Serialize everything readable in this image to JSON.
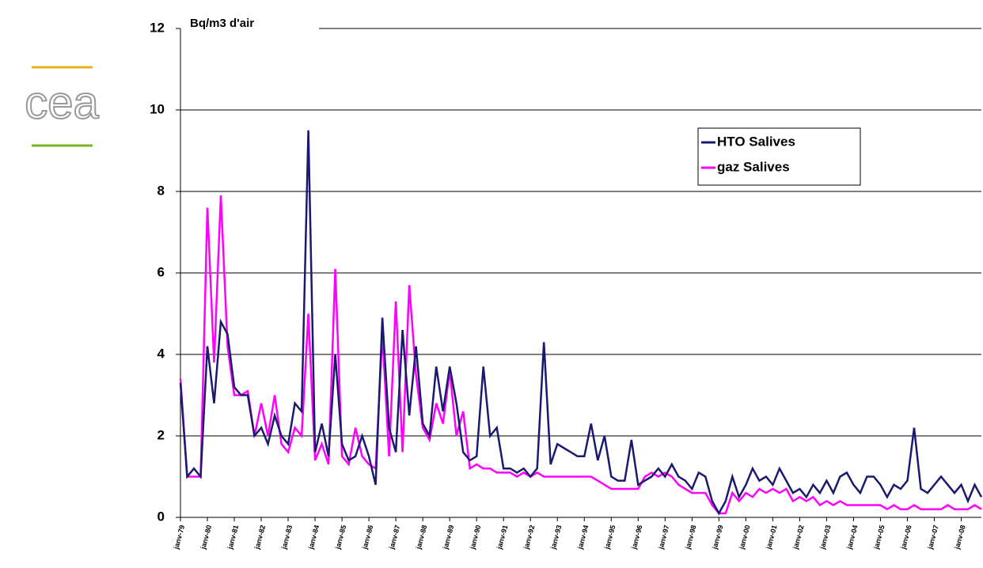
{
  "logo": "cea",
  "chart_data": {
    "type": "line",
    "y_label": "Bq/m3 d'air",
    "x": [
      1979,
      1979.25,
      1979.5,
      1979.75,
      1980,
      1980.25,
      1980.5,
      1980.75,
      1981,
      1981.25,
      1981.5,
      1981.75,
      1982,
      1982.25,
      1982.5,
      1982.75,
      1983,
      1983.25,
      1983.5,
      1983.75,
      1984,
      1984.25,
      1984.5,
      1984.75,
      1985,
      1985.25,
      1985.5,
      1985.75,
      1986,
      1986.25,
      1986.5,
      1986.75,
      1987,
      1987.25,
      1987.5,
      1987.75,
      1988,
      1988.25,
      1988.5,
      1988.75,
      1989,
      1989.25,
      1989.5,
      1989.75,
      1990,
      1990.25,
      1990.5,
      1990.75,
      1991,
      1991.25,
      1991.5,
      1991.75,
      1992,
      1992.25,
      1992.5,
      1992.75,
      1993,
      1993.25,
      1993.5,
      1993.75,
      1994,
      1994.25,
      1994.5,
      1994.75,
      1995,
      1995.25,
      1995.5,
      1995.75,
      1996,
      1996.25,
      1996.5,
      1996.75,
      1997,
      1997.25,
      1997.5,
      1997.75,
      1998,
      1998.25,
      1998.5,
      1998.75,
      1999,
      1999.25,
      1999.5,
      1999.75,
      2000,
      2000.25,
      2000.5,
      2000.75,
      2001,
      2001.25,
      2001.5,
      2001.75,
      2002,
      2002.25,
      2002.5,
      2002.75,
      2003,
      2003.25,
      2003.5,
      2003.75,
      2004,
      2004.25,
      2004.5,
      2004.75,
      2005,
      2005.25,
      2005.5,
      2005.75,
      2006,
      2006.25,
      2006.5,
      2006.75,
      2007,
      2007.25,
      2007.5,
      2007.75,
      2008,
      2008.25,
      2008.5,
      2008.75
    ],
    "series": [
      {
        "name": "HTO Salives",
        "color": "#1a1a6e",
        "values": [
          3.3,
          1.0,
          1.2,
          1.0,
          4.2,
          2.8,
          4.8,
          4.5,
          3.2,
          3.0,
          3.0,
          2.0,
          2.2,
          1.8,
          2.5,
          2.0,
          1.8,
          2.8,
          2.6,
          9.5,
          1.6,
          2.3,
          1.5,
          4.0,
          1.8,
          1.4,
          1.5,
          2.0,
          1.5,
          0.8,
          4.9,
          2.2,
          1.6,
          4.6,
          2.5,
          4.2,
          2.3,
          2.0,
          3.7,
          2.6,
          3.7,
          2.8,
          1.6,
          1.4,
          1.5,
          3.7,
          2.0,
          2.2,
          1.2,
          1.2,
          1.1,
          1.2,
          1.0,
          1.2,
          4.3,
          1.3,
          1.8,
          1.7,
          1.6,
          1.5,
          1.5,
          2.3,
          1.4,
          2.0,
          1.0,
          0.9,
          0.9,
          1.9,
          0.8,
          0.9,
          1.0,
          1.2,
          1.0,
          1.3,
          1.0,
          0.9,
          0.7,
          1.1,
          1.0,
          0.4,
          0.1,
          0.4,
          1.0,
          0.5,
          0.8,
          1.2,
          0.9,
          1.0,
          0.8,
          1.2,
          0.9,
          0.6,
          0.7,
          0.5,
          0.8,
          0.6,
          0.9,
          0.6,
          1.0,
          1.1,
          0.8,
          0.6,
          1.0,
          1.0,
          0.8,
          0.5,
          0.8,
          0.7,
          0.9,
          2.2,
          0.7,
          0.6,
          0.8,
          1.0,
          0.8,
          0.6,
          0.8,
          0.4,
          0.8,
          0.5
        ]
      },
      {
        "name": "gaz Salives",
        "color": "#ff00ff",
        "values": [
          3.4,
          1.0,
          1.0,
          1.0,
          7.6,
          3.8,
          7.9,
          4.2,
          3.0,
          3.0,
          3.1,
          2.0,
          2.8,
          2.0,
          3.0,
          1.8,
          1.6,
          2.2,
          2.0,
          5.0,
          1.4,
          1.8,
          1.3,
          6.1,
          1.5,
          1.3,
          2.2,
          1.5,
          1.3,
          1.2,
          4.5,
          1.5,
          5.3,
          1.6,
          5.7,
          3.5,
          2.2,
          1.9,
          2.8,
          2.3,
          3.6,
          2.0,
          2.6,
          1.2,
          1.3,
          1.2,
          1.2,
          1.1,
          1.1,
          1.1,
          1.0,
          1.1,
          1.0,
          1.1,
          1.0,
          1.0,
          1.0,
          1.0,
          1.0,
          1.0,
          1.0,
          1.0,
          0.9,
          0.8,
          0.7,
          0.7,
          0.7,
          0.7,
          0.7,
          1.0,
          1.1,
          1.0,
          1.1,
          1.0,
          0.8,
          0.7,
          0.6,
          0.6,
          0.6,
          0.3,
          0.1,
          0.1,
          0.6,
          0.4,
          0.6,
          0.5,
          0.7,
          0.6,
          0.7,
          0.6,
          0.7,
          0.4,
          0.5,
          0.4,
          0.5,
          0.3,
          0.4,
          0.3,
          0.4,
          0.3,
          0.3,
          0.3,
          0.3,
          0.3,
          0.3,
          0.2,
          0.3,
          0.2,
          0.2,
          0.3,
          0.2,
          0.2,
          0.2,
          0.2,
          0.3,
          0.2,
          0.2,
          0.2,
          0.3,
          0.2
        ]
      }
    ],
    "xlim": [
      1979,
      2008.75
    ],
    "xticks": [
      {
        "value": 1979,
        "label": "janv-79"
      },
      {
        "value": 1980,
        "label": "janv-80"
      },
      {
        "value": 1981,
        "label": "janv-81"
      },
      {
        "value": 1982,
        "label": "janv-82"
      },
      {
        "value": 1983,
        "label": "janv-83"
      },
      {
        "value": 1984,
        "label": "janv-84"
      },
      {
        "value": 1985,
        "label": "janv-85"
      },
      {
        "value": 1986,
        "label": "janv-86"
      },
      {
        "value": 1987,
        "label": "janv-87"
      },
      {
        "value": 1988,
        "label": "janv-88"
      },
      {
        "value": 1989,
        "label": "janv-89"
      },
      {
        "value": 1990,
        "label": "janv-90"
      },
      {
        "value": 1991,
        "label": "janv-91"
      },
      {
        "value": 1992,
        "label": "janv-92"
      },
      {
        "value": 1993,
        "label": "janv-93"
      },
      {
        "value": 1994,
        "label": "janv-94"
      },
      {
        "value": 1995,
        "label": "janv-95"
      },
      {
        "value": 1996,
        "label": "janv-96"
      },
      {
        "value": 1997,
        "label": "janv-97"
      },
      {
        "value": 1998,
        "label": "janv-98"
      },
      {
        "value": 1999,
        "label": "janv-99"
      },
      {
        "value": 2000,
        "label": "janv-00"
      },
      {
        "value": 2001,
        "label": "janv-01"
      },
      {
        "value": 2002,
        "label": "janv-02"
      },
      {
        "value": 2003,
        "label": "janv-03"
      },
      {
        "value": 2004,
        "label": "janv-04"
      },
      {
        "value": 2005,
        "label": "janv-05"
      },
      {
        "value": 2006,
        "label": "janv-06"
      },
      {
        "value": 2007,
        "label": "janv-07"
      },
      {
        "value": 2008,
        "label": "janv-08"
      }
    ],
    "ylim": [
      0,
      12
    ],
    "yticks": [
      0,
      2,
      4,
      6,
      8,
      10,
      12
    ],
    "grid": true,
    "legend": "upper right"
  }
}
